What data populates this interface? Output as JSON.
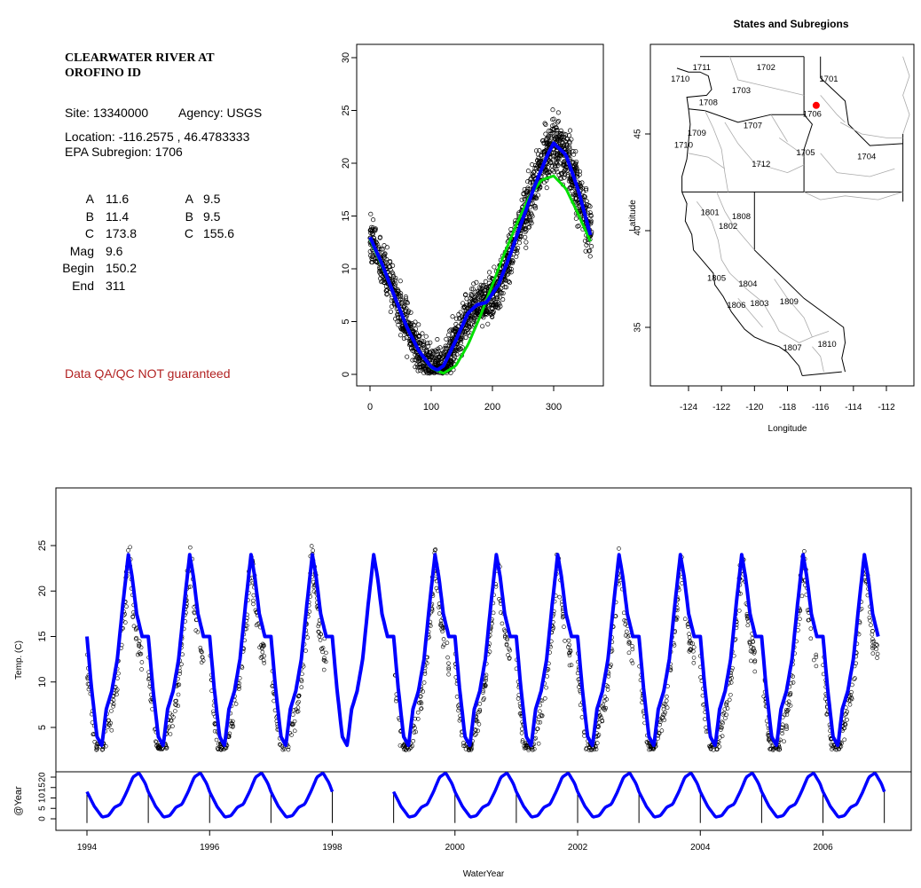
{
  "info": {
    "title_line1": "CLEARWATER RIVER AT",
    "title_line2": "OROFINO ID",
    "site": "Site: 13340000",
    "agency": "Agency: USGS",
    "location": "Location: -116.2575 , 46.4783333",
    "subregion": "EPA Subregion: 1706",
    "coef_left": [
      {
        "label": "A",
        "value": "11.6"
      },
      {
        "label": "B",
        "value": "11.4"
      },
      {
        "label": "C",
        "value": "173.8"
      },
      {
        "label": "Mag",
        "value": "9.6"
      },
      {
        "label": "Begin",
        "value": "150.2"
      },
      {
        "label": "End",
        "value": "311"
      }
    ],
    "coef_right": [
      {
        "label": "A",
        "value": "9.5"
      },
      {
        "label": "B",
        "value": "9.5"
      },
      {
        "label": "C",
        "value": "155.6"
      }
    ],
    "qa_note": "Data QA/QC NOT guaranteed"
  },
  "colors": {
    "points": "#000000",
    "fit_blue": "#0000ff",
    "fit_green": "#00e000",
    "site_marker": "#ff0000",
    "qa_text": "#b22222",
    "boundaries": "#aaaaaa"
  },
  "chart_data": [
    {
      "type": "scatter",
      "title": "",
      "xlabel": "",
      "ylabel": "",
      "xlim": [
        0,
        365
      ],
      "ylim": [
        0,
        30
      ],
      "x_ticks": [
        0,
        100,
        200,
        300
      ],
      "y_ticks": [
        0,
        5,
        10,
        15,
        20,
        25,
        30
      ],
      "series": [
        {
          "type": "scatter",
          "description": "daily stream temperature by day of water year",
          "x": [
            0,
            20,
            40,
            60,
            80,
            100,
            120,
            140,
            160,
            180,
            200,
            220,
            240,
            260,
            280,
            300,
            320,
            340,
            360
          ],
          "y": [
            13,
            10,
            7,
            4,
            2,
            1,
            1.5,
            3,
            5,
            7,
            9,
            12,
            15,
            19,
            22,
            23,
            20,
            16,
            13
          ]
        },
        {
          "type": "line",
          "description": "fitted curve (blue)",
          "x": [
            0,
            20,
            40,
            60,
            80,
            100,
            110,
            120,
            140,
            160,
            175,
            190,
            210,
            230,
            250,
            270,
            290,
            300,
            320,
            340,
            360
          ],
          "y": [
            13,
            10.4,
            7.4,
            4.5,
            2.2,
            0.7,
            0.4,
            0.8,
            3.2,
            5.8,
            6.6,
            6.8,
            8.5,
            11.5,
            14.8,
            18,
            20.8,
            21.9,
            20.8,
            17.5,
            13.2
          ]
        },
        {
          "type": "line",
          "description": "fitted curve (green)",
          "x": [
            0,
            20,
            40,
            60,
            80,
            100,
            120,
            140,
            160,
            180,
            200,
            220,
            240,
            260,
            280,
            300,
            320,
            340,
            360
          ],
          "y": [
            12.8,
            10.2,
            7.4,
            4.6,
            2.2,
            0.6,
            0.1,
            0.8,
            2.8,
            5.5,
            8.5,
            11.5,
            14.3,
            16.8,
            18.4,
            18.8,
            17.6,
            15.2,
            12.6
          ]
        }
      ]
    },
    {
      "type": "map",
      "title": "States and Subregions",
      "xlabel": "Longitude",
      "ylabel": "Latitude",
      "xlim": [
        -125.5,
        -110.5
      ],
      "ylim": [
        31.5,
        49.8
      ],
      "x_ticks": [
        -124,
        -122,
        -120,
        -118,
        -116,
        -114,
        -112
      ],
      "y_ticks": [
        35,
        40,
        45
      ],
      "site": {
        "lon": -116.2575,
        "lat": 46.4783333
      },
      "regions": [
        {
          "label": "1711",
          "lon": -123.2,
          "lat": 48.3
        },
        {
          "label": "1702",
          "lon": -119.3,
          "lat": 48.3
        },
        {
          "label": "1701",
          "lon": -115.5,
          "lat": 47.7
        },
        {
          "label": "1710",
          "lon": -124.5,
          "lat": 47.7
        },
        {
          "label": "1703",
          "lon": -120.8,
          "lat": 47.1
        },
        {
          "label": "1708",
          "lon": -122.8,
          "lat": 46.5
        },
        {
          "label": "1706",
          "lon": -116.5,
          "lat": 45.9
        },
        {
          "label": "1707",
          "lon": -120.1,
          "lat": 45.3
        },
        {
          "label": "1709",
          "lon": -123.5,
          "lat": 44.9
        },
        {
          "label": "1710",
          "lon": -124.3,
          "lat": 44.3
        },
        {
          "label": "1705",
          "lon": -116.9,
          "lat": 43.9
        },
        {
          "label": "1704",
          "lon": -113.2,
          "lat": 43.7
        },
        {
          "label": "1712",
          "lon": -119.6,
          "lat": 43.3
        },
        {
          "label": "1801",
          "lon": -122.7,
          "lat": 40.8
        },
        {
          "label": "1808",
          "lon": -120.8,
          "lat": 40.6
        },
        {
          "label": "1802",
          "lon": -121.6,
          "lat": 40.1
        },
        {
          "label": "1805",
          "lon": -122.3,
          "lat": 37.4
        },
        {
          "label": "1804",
          "lon": -120.4,
          "lat": 37.1
        },
        {
          "label": "1806",
          "lon": -121.1,
          "lat": 36.0
        },
        {
          "label": "1803",
          "lon": -119.7,
          "lat": 36.1
        },
        {
          "label": "1809",
          "lon": -117.9,
          "lat": 36.2
        },
        {
          "label": "1810",
          "lon": -115.6,
          "lat": 34.0
        },
        {
          "label": "1807",
          "lon": -117.7,
          "lat": 33.8
        }
      ]
    },
    {
      "type": "scatter",
      "title": "",
      "xlabel": "",
      "ylabel": "Temp. (C)",
      "xlim": [
        1993.9,
        2007.1
      ],
      "ylim": [
        0,
        30
      ],
      "x_ticks": [
        1994,
        1996,
        1998,
        2000,
        2002,
        2004,
        2006
      ],
      "y_ticks": [
        5,
        10,
        15,
        20,
        25
      ],
      "series": [
        {
          "type": "scatter",
          "description": "observed daily temperature",
          "years_with_data": [
            1994,
            1995,
            1996,
            1997,
            1999,
            2000,
            2001,
            2002,
            2003,
            2004,
            2005,
            2006
          ]
        },
        {
          "type": "line",
          "description": "fitted seasonal curve (blue)",
          "min": 0.4,
          "max": 22
        }
      ]
    },
    {
      "type": "line",
      "title": "",
      "xlabel": "WaterYear",
      "ylabel": "@Year",
      "xlim": [
        1993.9,
        2007.1
      ],
      "ylim": [
        -2,
        30
      ],
      "y_ticks": [
        0,
        5,
        10,
        15,
        20
      ],
      "year_boundaries": [
        1994,
        1995,
        1996,
        1997,
        1998,
        1999,
        2000,
        2001,
        2002,
        2003,
        2004,
        2005,
        2006,
        2007
      ],
      "years_with_data": [
        1994,
        1995,
        1996,
        1997,
        1999,
        2000,
        2001,
        2002,
        2003,
        2004,
        2005,
        2006
      ]
    }
  ]
}
